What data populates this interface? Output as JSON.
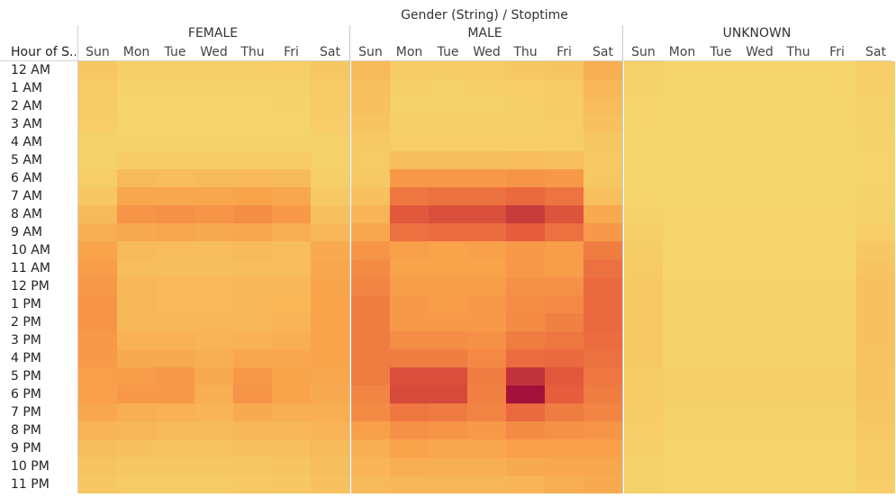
{
  "chart_data": {
    "type": "heatmap",
    "title": "Gender (String)  /  Stoptime",
    "row_header": "Hour of S..",
    "columns_outer": [
      "FEMALE",
      "MALE",
      "UNKNOWN"
    ],
    "columns_inner": [
      "Sun",
      "Mon",
      "Tue",
      "Wed",
      "Thu",
      "Fri",
      "Sat"
    ],
    "rows": [
      "12 AM",
      "1 AM",
      "2 AM",
      "3 AM",
      "4 AM",
      "5 AM",
      "6 AM",
      "7 AM",
      "8 AM",
      "9 AM",
      "10 AM",
      "11 AM",
      "12 PM",
      "1 PM",
      "2 PM",
      "3 PM",
      "4 PM",
      "5 PM",
      "6 PM",
      "7 PM",
      "8 PM",
      "9 PM",
      "10 PM",
      "11 PM"
    ],
    "color_scale": [
      "#f5d76e",
      "#f9a24a",
      "#e8603c",
      "#a3123a"
    ],
    "values": [
      [
        0.1,
        0.05,
        0.05,
        0.05,
        0.05,
        0.06,
        0.1,
        0.18,
        0.08,
        0.07,
        0.08,
        0.1,
        0.12,
        0.25,
        0.04,
        0.02,
        0.02,
        0.02,
        0.02,
        0.02,
        0.06
      ],
      [
        0.08,
        0.03,
        0.03,
        0.03,
        0.03,
        0.04,
        0.08,
        0.15,
        0.05,
        0.04,
        0.05,
        0.06,
        0.08,
        0.2,
        0.03,
        0.01,
        0.01,
        0.01,
        0.01,
        0.02,
        0.05
      ],
      [
        0.07,
        0.02,
        0.02,
        0.02,
        0.02,
        0.03,
        0.07,
        0.14,
        0.04,
        0.04,
        0.04,
        0.05,
        0.07,
        0.17,
        0.02,
        0.01,
        0.01,
        0.01,
        0.01,
        0.01,
        0.04
      ],
      [
        0.06,
        0.02,
        0.02,
        0.02,
        0.02,
        0.02,
        0.06,
        0.12,
        0.05,
        0.05,
        0.05,
        0.05,
        0.06,
        0.14,
        0.02,
        0.01,
        0.01,
        0.01,
        0.01,
        0.01,
        0.04
      ],
      [
        0.04,
        0.03,
        0.03,
        0.03,
        0.03,
        0.03,
        0.04,
        0.09,
        0.06,
        0.06,
        0.06,
        0.06,
        0.06,
        0.1,
        0.01,
        0.01,
        0.01,
        0.01,
        0.01,
        0.01,
        0.03
      ],
      [
        0.04,
        0.07,
        0.07,
        0.07,
        0.07,
        0.07,
        0.04,
        0.08,
        0.16,
        0.16,
        0.16,
        0.17,
        0.15,
        0.09,
        0.01,
        0.01,
        0.01,
        0.01,
        0.01,
        0.01,
        0.02
      ],
      [
        0.06,
        0.18,
        0.17,
        0.18,
        0.19,
        0.18,
        0.05,
        0.09,
        0.38,
        0.38,
        0.38,
        0.4,
        0.38,
        0.1,
        0.01,
        0.01,
        0.01,
        0.01,
        0.01,
        0.01,
        0.02
      ],
      [
        0.1,
        0.3,
        0.3,
        0.3,
        0.32,
        0.3,
        0.09,
        0.14,
        0.55,
        0.58,
        0.58,
        0.62,
        0.57,
        0.15,
        0.02,
        0.01,
        0.01,
        0.01,
        0.01,
        0.01,
        0.03
      ],
      [
        0.18,
        0.4,
        0.42,
        0.4,
        0.44,
        0.38,
        0.14,
        0.22,
        0.7,
        0.74,
        0.74,
        0.82,
        0.72,
        0.28,
        0.03,
        0.02,
        0.02,
        0.02,
        0.02,
        0.02,
        0.04
      ],
      [
        0.25,
        0.28,
        0.3,
        0.28,
        0.3,
        0.26,
        0.2,
        0.3,
        0.58,
        0.6,
        0.6,
        0.68,
        0.58,
        0.38,
        0.05,
        0.02,
        0.02,
        0.02,
        0.02,
        0.02,
        0.06
      ],
      [
        0.32,
        0.18,
        0.17,
        0.17,
        0.18,
        0.17,
        0.28,
        0.4,
        0.35,
        0.33,
        0.34,
        0.38,
        0.36,
        0.52,
        0.07,
        0.02,
        0.02,
        0.02,
        0.02,
        0.02,
        0.1
      ],
      [
        0.36,
        0.17,
        0.16,
        0.16,
        0.17,
        0.17,
        0.3,
        0.45,
        0.33,
        0.32,
        0.33,
        0.38,
        0.36,
        0.58,
        0.08,
        0.02,
        0.02,
        0.02,
        0.02,
        0.02,
        0.12
      ],
      [
        0.38,
        0.2,
        0.19,
        0.19,
        0.2,
        0.2,
        0.32,
        0.48,
        0.36,
        0.36,
        0.36,
        0.42,
        0.42,
        0.62,
        0.09,
        0.03,
        0.03,
        0.03,
        0.03,
        0.03,
        0.14
      ],
      [
        0.4,
        0.2,
        0.19,
        0.19,
        0.2,
        0.21,
        0.33,
        0.52,
        0.38,
        0.36,
        0.38,
        0.44,
        0.46,
        0.62,
        0.09,
        0.03,
        0.03,
        0.03,
        0.03,
        0.03,
        0.14
      ],
      [
        0.4,
        0.2,
        0.2,
        0.2,
        0.2,
        0.22,
        0.33,
        0.52,
        0.38,
        0.38,
        0.38,
        0.45,
        0.5,
        0.62,
        0.09,
        0.03,
        0.03,
        0.03,
        0.03,
        0.03,
        0.14
      ],
      [
        0.38,
        0.24,
        0.24,
        0.22,
        0.24,
        0.26,
        0.32,
        0.52,
        0.44,
        0.44,
        0.42,
        0.52,
        0.55,
        0.6,
        0.09,
        0.03,
        0.03,
        0.03,
        0.03,
        0.03,
        0.14
      ],
      [
        0.38,
        0.28,
        0.28,
        0.25,
        0.3,
        0.3,
        0.32,
        0.52,
        0.52,
        0.52,
        0.46,
        0.6,
        0.62,
        0.58,
        0.09,
        0.04,
        0.04,
        0.04,
        0.04,
        0.04,
        0.13
      ],
      [
        0.35,
        0.36,
        0.38,
        0.28,
        0.38,
        0.32,
        0.3,
        0.52,
        0.74,
        0.74,
        0.52,
        0.86,
        0.7,
        0.55,
        0.08,
        0.05,
        0.05,
        0.05,
        0.05,
        0.05,
        0.12
      ],
      [
        0.34,
        0.38,
        0.38,
        0.26,
        0.4,
        0.32,
        0.28,
        0.48,
        0.76,
        0.76,
        0.5,
        1.0,
        0.68,
        0.52,
        0.08,
        0.05,
        0.05,
        0.05,
        0.05,
        0.05,
        0.12
      ],
      [
        0.3,
        0.26,
        0.24,
        0.22,
        0.28,
        0.26,
        0.26,
        0.45,
        0.55,
        0.53,
        0.48,
        0.62,
        0.52,
        0.48,
        0.07,
        0.04,
        0.04,
        0.04,
        0.04,
        0.04,
        0.11
      ],
      [
        0.22,
        0.2,
        0.18,
        0.18,
        0.2,
        0.2,
        0.22,
        0.35,
        0.42,
        0.4,
        0.38,
        0.45,
        0.42,
        0.4,
        0.06,
        0.03,
        0.03,
        0.03,
        0.03,
        0.03,
        0.09
      ],
      [
        0.16,
        0.14,
        0.13,
        0.13,
        0.14,
        0.15,
        0.18,
        0.26,
        0.32,
        0.3,
        0.3,
        0.34,
        0.34,
        0.34,
        0.05,
        0.02,
        0.02,
        0.02,
        0.02,
        0.02,
        0.08
      ],
      [
        0.12,
        0.1,
        0.1,
        0.1,
        0.11,
        0.12,
        0.16,
        0.22,
        0.26,
        0.25,
        0.25,
        0.28,
        0.3,
        0.3,
        0.04,
        0.02,
        0.02,
        0.02,
        0.02,
        0.02,
        0.07
      ],
      [
        0.1,
        0.08,
        0.08,
        0.08,
        0.09,
        0.1,
        0.14,
        0.18,
        0.2,
        0.2,
        0.2,
        0.22,
        0.26,
        0.28,
        0.04,
        0.02,
        0.02,
        0.02,
        0.02,
        0.02,
        0.06
      ]
    ]
  }
}
